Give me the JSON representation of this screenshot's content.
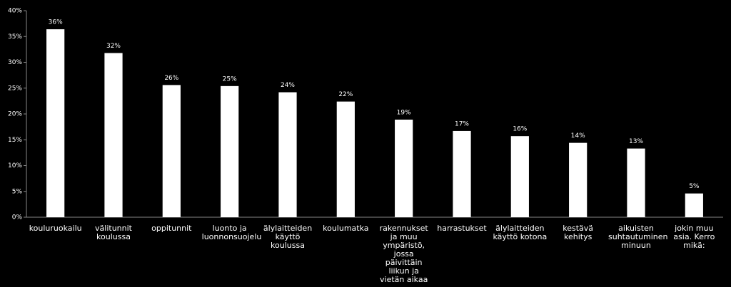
{
  "chart_data": {
    "type": "bar",
    "categories": [
      "kouluruokailu",
      "välitunnit koulussa",
      "oppitunnit",
      "luonto ja luonnonsuojelu",
      "älylaitteiden käyttö koulussa",
      "koulumatka",
      "rakennukset ja muu ympäristö, jossa päivittäin liikun ja vietän aikaa",
      "harrastukset",
      "älylaitteiden käyttö kotona",
      "kestävä kehitys",
      "aikuisten suhtautuminen minuun",
      "jokin muu asia. Kerro mikä:"
    ],
    "values": [
      36.4,
      31.8,
      25.6,
      25.4,
      24.2,
      22.4,
      18.9,
      16.7,
      15.7,
      14.4,
      13.3,
      4.6
    ],
    "value_labels": [
      "36%",
      "32%",
      "26%",
      "25%",
      "24%",
      "22%",
      "19%",
      "17%",
      "16%",
      "14%",
      "13%",
      "5%"
    ],
    "color": "#ffffff",
    "ylim": [
      0,
      40
    ],
    "yticks": [
      {
        "value": 0,
        "label": "0%"
      },
      {
        "value": 5,
        "label": "5%"
      },
      {
        "value": 10,
        "label": "10%"
      },
      {
        "value": 15,
        "label": "15%"
      },
      {
        "value": 20,
        "label": "20%"
      },
      {
        "value": 25,
        "label": "25%"
      },
      {
        "value": 30,
        "label": "30%"
      },
      {
        "value": 35,
        "label": "35%"
      },
      {
        "value": 40,
        "label": "40%"
      }
    ],
    "grid": false
  }
}
